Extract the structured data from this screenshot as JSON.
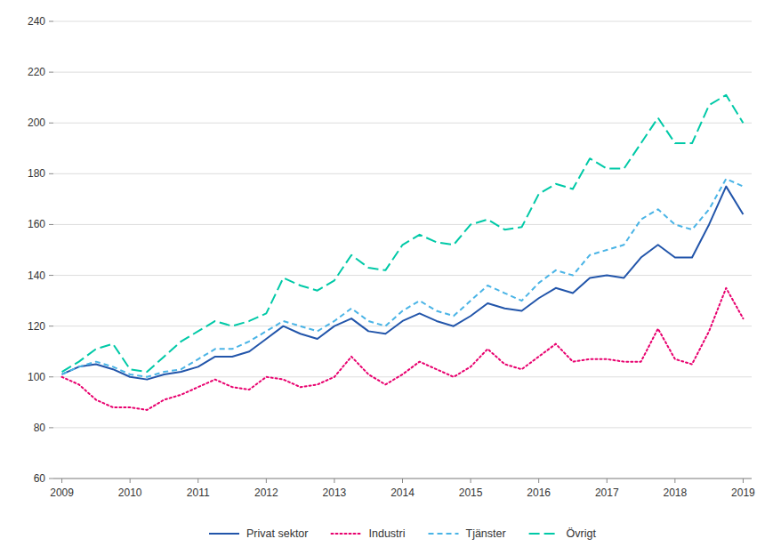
{
  "chart_data": {
    "type": "line",
    "categories": [
      "2009",
      null,
      null,
      null,
      "2010",
      null,
      null,
      null,
      "2011",
      null,
      null,
      null,
      "2012",
      null,
      null,
      null,
      "2013",
      null,
      null,
      null,
      "2014",
      null,
      null,
      null,
      "2015",
      null,
      null,
      null,
      "2016",
      null,
      null,
      null,
      "2017",
      null,
      null,
      null,
      "2018",
      null,
      null,
      null,
      "2019"
    ],
    "series": [
      {
        "name": "Privat sektor",
        "color": "#2255aa",
        "line_style": "solid",
        "values": [
          101,
          104,
          105,
          103,
          100,
          99,
          101,
          102,
          104,
          108,
          108,
          110,
          115,
          120,
          117,
          115,
          120,
          123,
          118,
          117,
          122,
          125,
          122,
          120,
          124,
          129,
          127,
          126,
          131,
          135,
          133,
          139,
          140,
          139,
          147,
          152,
          147,
          147,
          160,
          175,
          164
        ]
      },
      {
        "name": "Industri",
        "color": "#e8006e",
        "line_style": "dotted",
        "values": [
          100,
          97,
          91,
          88,
          88,
          87,
          91,
          93,
          96,
          99,
          96,
          95,
          100,
          99,
          96,
          97,
          100,
          108,
          101,
          97,
          101,
          106,
          103,
          100,
          104,
          111,
          105,
          103,
          108,
          113,
          106,
          107,
          107,
          106,
          106,
          119,
          107,
          105,
          118,
          135,
          123
        ]
      },
      {
        "name": "Tjänster",
        "color": "#4ab4e6",
        "line_style": "dashed",
        "values": [
          101,
          104,
          106,
          104,
          101,
          100,
          102,
          103,
          107,
          111,
          111,
          114,
          118,
          122,
          120,
          118,
          122,
          127,
          122,
          120,
          126,
          130,
          126,
          124,
          130,
          136,
          133,
          130,
          137,
          142,
          140,
          148,
          150,
          152,
          162,
          166,
          160,
          158,
          166,
          178,
          175
        ]
      },
      {
        "name": "Övrigt",
        "color": "#00c9a7",
        "line_style": "longdash",
        "values": [
          102,
          106,
          111,
          113,
          103,
          102,
          108,
          114,
          118,
          122,
          120,
          122,
          125,
          139,
          136,
          134,
          138,
          148,
          143,
          142,
          152,
          156,
          153,
          152,
          160,
          162,
          158,
          159,
          172,
          176,
          174,
          186,
          182,
          182,
          192,
          202,
          192,
          192,
          207,
          211,
          200
        ]
      }
    ],
    "ylim": [
      60,
      240
    ],
    "yticks": [
      60,
      80,
      100,
      120,
      140,
      160,
      180,
      200,
      220,
      240
    ],
    "grid": true,
    "legend": "bottom"
  }
}
